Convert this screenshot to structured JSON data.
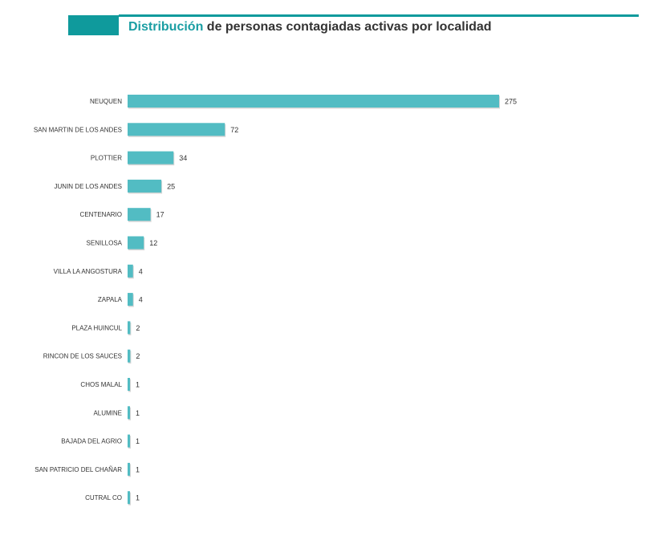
{
  "header": {
    "title_accent": "Distribución",
    "title_rest": " de personas contagiadas activas por localidad"
  },
  "colors": {
    "accent": "#0f9a9c",
    "bar": "#52bcc3"
  },
  "chart_data": {
    "type": "bar",
    "orientation": "horizontal",
    "title": "Distribución de personas contagiadas activas por localidad",
    "categories": [
      "NEUQUEN",
      "SAN MARTIN DE LOS ANDES",
      "PLOTTIER",
      "JUNIN DE LOS ANDES",
      "CENTENARIO",
      "SENILLOSA",
      "VILLA LA ANGOSTURA",
      "ZAPALA",
      "PLAZA HUINCUL",
      "RINCON DE LOS SAUCES",
      "CHOS MALAL",
      "ALUMINE",
      "BAJADA DEL AGRIO",
      "SAN PATRICIO DEL CHAÑAR",
      "CUTRAL CO"
    ],
    "values": [
      275,
      72,
      34,
      25,
      17,
      12,
      4,
      4,
      2,
      2,
      1,
      1,
      1,
      1,
      1
    ],
    "xlabel": "",
    "ylabel": "",
    "xlim": [
      0,
      275
    ],
    "grid": false,
    "legend": "none"
  }
}
